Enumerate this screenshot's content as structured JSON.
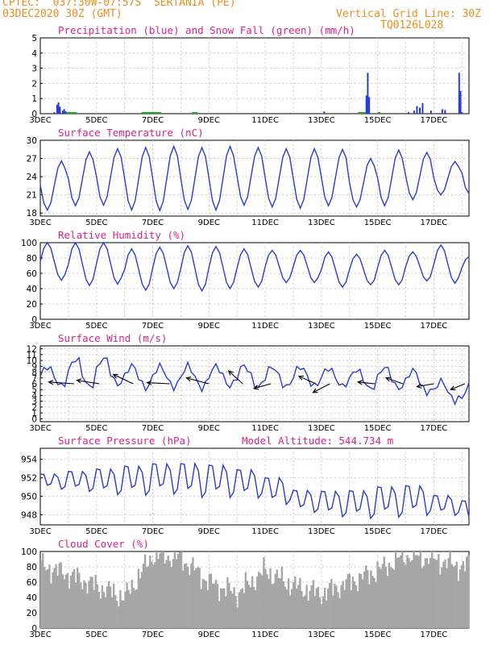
{
  "header": {
    "line1_left": "CPTEC:  037:30W-07:57S  SERTANIA (PE)",
    "line2_left": "03DEC2020 30Z (GMT)",
    "line2_right": "Vertical Grid Line: 30Z",
    "line3_right": "TQ0126L028"
  },
  "colors": {
    "line": "#2b3bd6",
    "snow": "#22aa22",
    "title": "#e0208a",
    "header": "#f08c1c",
    "cloud": "#a6a6a6"
  },
  "x_ticks": [
    "3DEC",
    "5DEC",
    "7DEC",
    "9DEC",
    "11DEC",
    "13DEC",
    "15DEC",
    "17DEC"
  ],
  "x_range_days": [
    3,
    18.25
  ],
  "chart_data": [
    {
      "id": "precip",
      "type": "bar",
      "title": "Precipitation (blue) and Snow Fall (green) (mm/h)",
      "ylim": [
        0,
        5
      ],
      "yticks": [
        0,
        1,
        2,
        3,
        4,
        5
      ],
      "x": [
        3.5,
        3.6,
        3.65,
        3.7,
        3.8,
        3.85,
        3.9,
        11.9,
        13.1,
        14.6,
        14.65,
        14.7,
        16.1,
        16.3,
        16.4,
        16.5,
        16.6,
        16.9,
        17.3,
        17.4,
        17.9,
        17.95,
        18.0
      ],
      "values": [
        0.1,
        0.6,
        0.75,
        0.45,
        0.2,
        0.3,
        0.15,
        0.05,
        0.15,
        1.2,
        2.7,
        1.1,
        0.1,
        0.2,
        0.5,
        0.4,
        0.7,
        0.2,
        0.3,
        0.25,
        2.7,
        1.5,
        0.1
      ],
      "snow_segments": [
        [
          3.9,
          4.3
        ],
        [
          6.6,
          7.3
        ],
        [
          8.4,
          8.6
        ],
        [
          14.3,
          14.6
        ],
        [
          15.0,
          15.1
        ]
      ]
    },
    {
      "id": "temperature",
      "type": "line",
      "title": "Surface Temperature (nC)",
      "ylim": [
        17.5,
        30
      ],
      "yticks": [
        18,
        21,
        24,
        27,
        30
      ],
      "daily_min": [
        18.5,
        19.2,
        19.3,
        18.5,
        18.4,
        18.6,
        18.5,
        19.3,
        19.0,
        18.8,
        19.2,
        19.0,
        19.2,
        20.2,
        21.0,
        21.2
      ],
      "daily_max": [
        26.6,
        28.1,
        28.6,
        28.8,
        29.0,
        28.8,
        29.0,
        28.8,
        28.6,
        28.6,
        28.5,
        27.0,
        28.4,
        28.0,
        26.5,
        28.0
      ]
    },
    {
      "id": "humidity",
      "type": "line",
      "title": "Relative Humidity (%)",
      "ylim": [
        0,
        100
      ],
      "yticks": [
        0,
        20,
        40,
        60,
        80,
        100
      ],
      "daily_min": [
        51,
        44,
        46,
        38,
        40,
        37,
        40,
        42,
        48,
        48,
        42,
        45,
        45,
        50,
        47,
        53
      ],
      "daily_max": [
        100,
        100,
        100,
        92,
        94,
        96,
        95,
        92,
        90,
        90,
        88,
        85,
        90,
        88,
        97,
        82
      ]
    },
    {
      "id": "wind",
      "type": "line",
      "title": "Surface Wind (m/s)",
      "ylim": [
        -0.5,
        12.5
      ],
      "yticks": [
        0,
        1,
        2,
        3,
        4,
        5,
        6,
        7,
        8,
        9,
        10,
        11,
        12
      ],
      "daily_min": [
        5.0,
        4.5,
        5.0,
        4.6,
        4.8,
        4.6,
        5.0,
        4.7,
        4.8,
        5.0,
        5.0,
        4.5,
        4.5,
        3.8,
        2.5,
        0.8
      ],
      "daily_max": [
        9.5,
        11.2,
        11.3,
        9.8,
        9.6,
        9.7,
        9.6,
        9.8,
        9.5,
        9.5,
        9.2,
        9.0,
        9.5,
        9.0,
        7.0,
        6.2
      ],
      "arrows": [
        {
          "x": 3.3,
          "tip": [
            3.3,
            6.3
          ],
          "tail": [
            4.2,
            6.0
          ]
        },
        {
          "x": 4.3,
          "tip": [
            4.3,
            6.6
          ],
          "tail": [
            5.1,
            6.0
          ]
        },
        {
          "x": 5.6,
          "tip": [
            5.6,
            7.6
          ],
          "tail": [
            6.3,
            6.0
          ]
        },
        {
          "x": 6.8,
          "tip": [
            6.8,
            6.2
          ],
          "tail": [
            7.6,
            6.0
          ]
        },
        {
          "x": 8.2,
          "tip": [
            8.2,
            7.0
          ],
          "tail": [
            9.0,
            6.0
          ]
        },
        {
          "x": 9.7,
          "tip": [
            9.7,
            8.2
          ],
          "tail": [
            10.2,
            6.0
          ]
        },
        {
          "x": 10.6,
          "tip": [
            10.6,
            5.2
          ],
          "tail": [
            11.2,
            6.0
          ]
        },
        {
          "x": 12.2,
          "tip": [
            12.2,
            7.3
          ],
          "tail": [
            12.8,
            6.0
          ]
        },
        {
          "x": 12.7,
          "tip": [
            12.7,
            4.5
          ],
          "tail": [
            13.3,
            6.0
          ]
        },
        {
          "x": 14.3,
          "tip": [
            14.3,
            6.3
          ],
          "tail": [
            14.9,
            6.0
          ]
        },
        {
          "x": 15.3,
          "tip": [
            15.3,
            7.0
          ],
          "tail": [
            15.9,
            6.0
          ]
        },
        {
          "x": 16.4,
          "tip": [
            16.4,
            5.5
          ],
          "tail": [
            17.0,
            6.0
          ]
        },
        {
          "x": 17.6,
          "tip": [
            17.6,
            5.0
          ],
          "tail": [
            18.1,
            6.0
          ]
        }
      ]
    },
    {
      "id": "pressure",
      "type": "line",
      "title": "Surface Pressure (hPa)",
      "subtitle": "Model Altitude: 544.734 m",
      "ylim": [
        946.9,
        955.2
      ],
      "yticks": [
        948,
        950,
        952,
        954
      ],
      "daily_min": [
        950.6,
        950.3,
        949.9,
        949.8,
        949.9,
        949.5,
        949.5,
        949.5,
        948.8,
        948.0,
        947.5,
        947.3,
        947.4,
        947.6,
        947.7,
        946.8
      ],
      "daily_max": [
        952.8,
        953.2,
        953.6,
        954.0,
        954.3,
        954.4,
        954.2,
        953.6,
        952.7,
        951.2,
        951.2,
        951.3,
        951.8,
        951.9,
        950.6,
        950.1
      ]
    },
    {
      "id": "cloud",
      "type": "bar",
      "title": "Cloud Cover (%)",
      "ylim": [
        0,
        100
      ],
      "yticks": [
        0,
        20,
        40,
        60,
        80,
        100
      ],
      "daily_level": [
        82,
        70,
        55,
        40,
        95,
        92,
        60,
        45,
        75,
        55,
        45,
        60,
        75,
        95,
        90,
        80,
        90
      ]
    }
  ]
}
